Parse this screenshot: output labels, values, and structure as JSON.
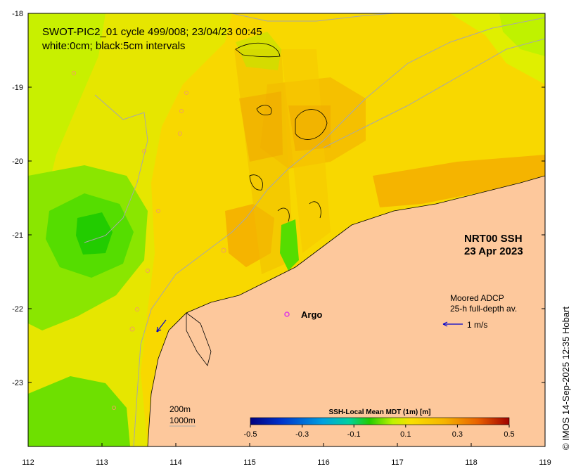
{
  "map": {
    "title_line1": "SWOT-PIC2_01 cycle 499/008; 23/04/23 00:45",
    "title_line2": "white:0cm; black:5cm intervals",
    "product_line1": "NRT00 SSH",
    "product_line2": "23 Apr 2023",
    "argo_label": "Argo",
    "adcp_line1": "Moored ADCP",
    "adcp_line2": "25-h full-depth av.",
    "adcp_scale_label": "1 m/s",
    "depth_label_1": "200m",
    "depth_label_2": "1000m",
    "credit": "© IMOS 14-Sep-2025 12:35 Hobart",
    "lon_ticks": [
      "112",
      "113",
      "114",
      "115",
      "116",
      "117",
      "118",
      "119"
    ],
    "lat_ticks": [
      "-18",
      "-19",
      "-20",
      "-21",
      "-22",
      "-23"
    ]
  },
  "colorbar": {
    "title": "SSH-Local Mean MDT (1m) [m]",
    "ticks": [
      "-0.5",
      "-0.3",
      "-0.1",
      "0.1",
      "0.3",
      "0.5"
    ],
    "range": [
      -0.5,
      0.5
    ]
  },
  "colors": {
    "land": "#fdc89c",
    "ssh_yellow": "#f8d800",
    "ssh_orange": "#f5b400",
    "ssh_lightgreen": "#bff200",
    "ssh_green": "#6ee000",
    "ssh_darkgreen": "#22cc00",
    "argo": "#e040e0",
    "vector": "#0000cc"
  }
}
